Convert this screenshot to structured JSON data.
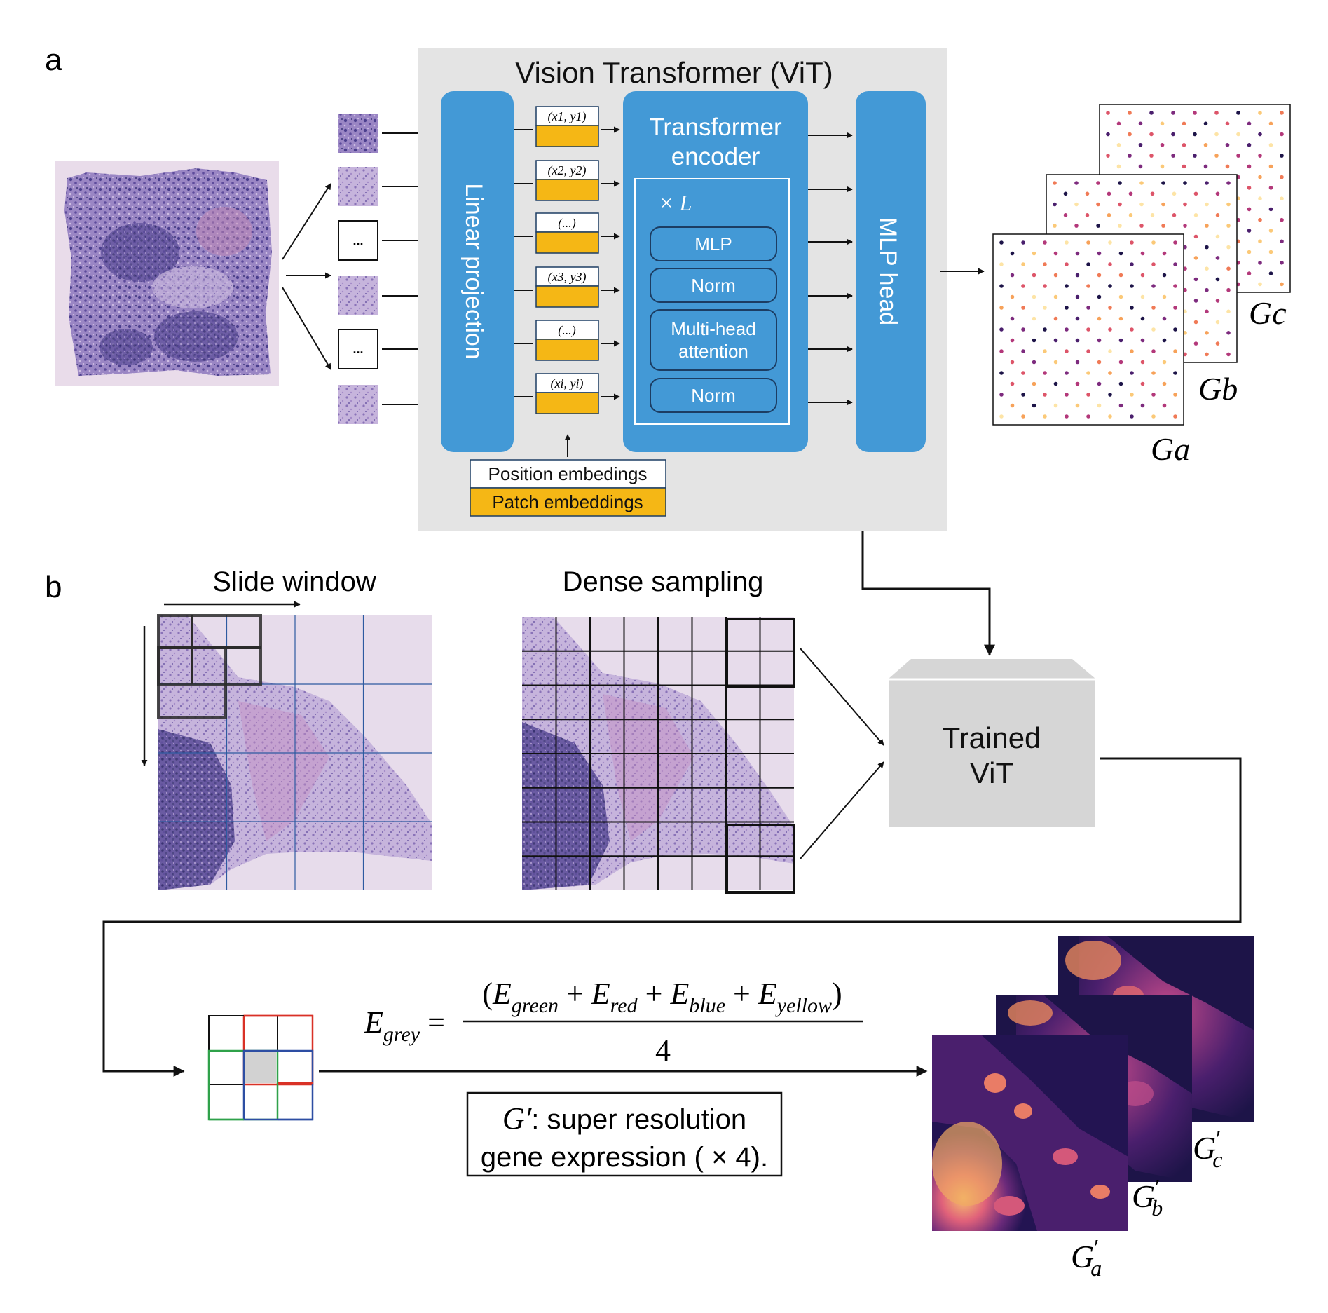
{
  "panel_a": {
    "label": "a",
    "vit_title": "Vision Transformer (ViT)",
    "linear_projection": "Linear projection",
    "transformer_encoder_line1": "Transformer",
    "transformer_encoder_line2": "encoder",
    "repeat_label": "× L",
    "encoder_blocks": [
      "MLP",
      "Norm",
      "Multi-head",
      "attention",
      "Norm"
    ],
    "mlp_head": "MLP head",
    "patch_placeholder": "...",
    "position_embedding_labels": [
      "(x1, y1)",
      "(x2, y2)",
      "(...)",
      "(x3, y3)",
      "(...)",
      "(xi, yi)"
    ],
    "legend_position": "Position embedings",
    "legend_patch": "Patch embeddings",
    "gene_maps": [
      "Gc",
      "Gb",
      "Ga"
    ]
  },
  "panel_b": {
    "label": "b",
    "slide_window": "Slide window",
    "dense_sampling": "Dense sampling",
    "trained_vit_line1": "Trained",
    "trained_vit_line2": "ViT",
    "formula_lhs": "E_grey =",
    "formula_numerator": "(E_green + E_red + E_blue + E_yellow)",
    "formula_denominator": "4",
    "caption_line1": "G′: super resolution",
    "caption_line2": "gene expression ( × 4).",
    "sr_maps": [
      "G′c",
      "G′b",
      "G′a"
    ]
  },
  "colors": {
    "vit_bg": "#e4e4e4",
    "block_blue": "#4399d6",
    "embed_yellow": "#f5b715",
    "tissue": "#b9a2cf",
    "tissue_dark": "#3b3577",
    "sr_dark": "#1d1448",
    "sr_bright": "#f4a05e"
  }
}
